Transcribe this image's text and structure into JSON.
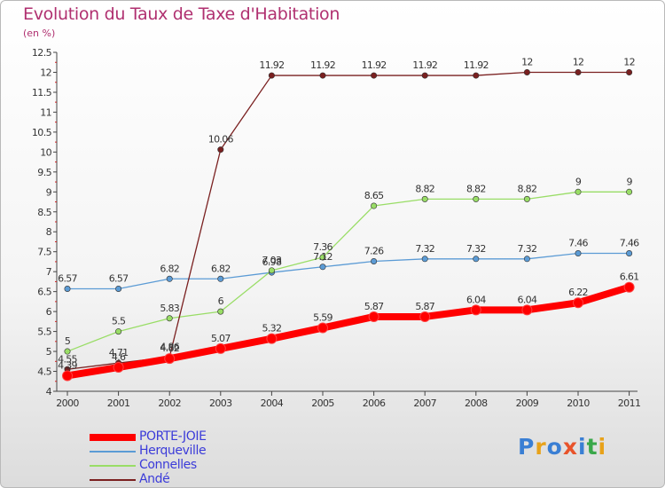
{
  "chart_data": {
    "type": "line",
    "title": "Evolution du Taux de Taxe d'Habitation",
    "subtitle": "(en %)",
    "x": [
      "2000",
      "2001",
      "2002",
      "2003",
      "2004",
      "2005",
      "2006",
      "2007",
      "2008",
      "2009",
      "2010",
      "2011"
    ],
    "ylim": [
      4,
      12.5
    ],
    "yticks": [
      "4",
      "4.5",
      "5",
      "5.5",
      "6",
      "6.5",
      "7",
      "7.5",
      "8",
      "8.5",
      "9",
      "9.5",
      "10",
      "10.5",
      "11",
      "11.5",
      "12",
      "12.5"
    ],
    "grid": false,
    "legend_position": "bottom-left",
    "series": [
      {
        "name": "PORTE-JOIE",
        "color": "#ff0000",
        "values": [
          4.39,
          4.6,
          4.82,
          5.07,
          5.32,
          5.59,
          5.87,
          5.87,
          6.04,
          6.04,
          6.22,
          6.61
        ],
        "labels": [
          "4.39",
          "4.6",
          "4.82",
          "5.07",
          "5.32",
          "5.59",
          "5.87",
          "5.87",
          "6.04",
          "6.04",
          "6.22",
          "6.61"
        ]
      },
      {
        "name": "Herqueville",
        "color": "#5b9bd5",
        "values": [
          6.57,
          6.57,
          6.82,
          6.82,
          6.98,
          7.12,
          7.26,
          7.32,
          7.32,
          7.32,
          7.46,
          7.46
        ],
        "labels": [
          "6.57",
          "6.57",
          "6.82",
          "6.82",
          "6.98",
          "7.12",
          "7.26",
          "7.32",
          "7.32",
          "7.32",
          "7.46",
          "7.46"
        ]
      },
      {
        "name": "Connelles",
        "color": "#99dd66",
        "values": [
          5,
          5.5,
          5.83,
          6,
          7.03,
          7.36,
          8.65,
          8.82,
          8.82,
          8.82,
          9,
          9
        ],
        "labels": [
          "5",
          "5.5",
          "5.83",
          "6",
          "7.03",
          "7.36",
          "8.65",
          "8.82",
          "8.82",
          "8.82",
          "9",
          "9"
        ]
      },
      {
        "name": "Andé",
        "color": "#7a2020",
        "values": [
          4.55,
          4.71,
          4.86,
          10.06,
          11.92,
          11.92,
          11.92,
          11.92,
          11.92,
          12,
          12,
          12
        ],
        "labels": [
          "4.55",
          "4.71",
          "4.86",
          "10.06",
          "11.92",
          "11.92",
          "11.92",
          "11.92",
          "11.92",
          "12",
          "12",
          "12"
        ]
      }
    ]
  },
  "logo": {
    "text": "Proxiti",
    "letters": [
      "P",
      "r",
      "o",
      "x",
      "i",
      "t",
      "i"
    ],
    "colors": [
      "#3a7fd4",
      "#e8a21a",
      "#3a7fd4",
      "#e8532a",
      "#3a7fd4",
      "#3aa84a",
      "#e8a21a"
    ]
  }
}
